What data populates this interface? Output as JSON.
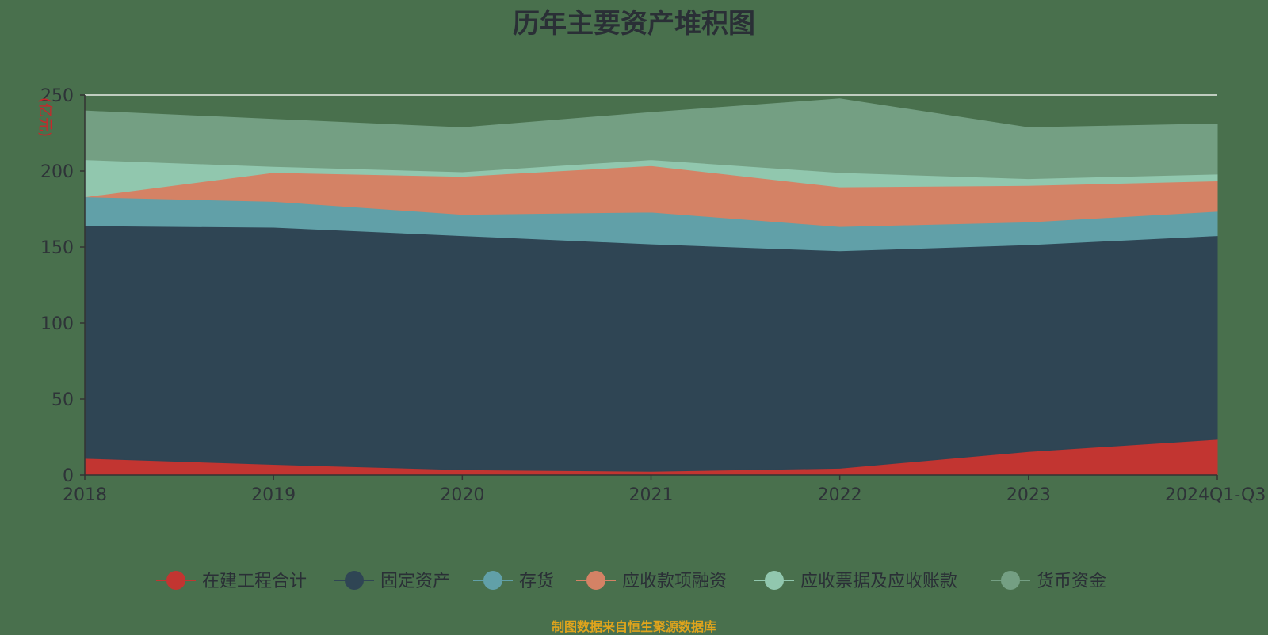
{
  "chart_data": {
    "type": "area",
    "stacked": true,
    "title": "历年主要资产堆积图",
    "ylabel": "(亿元)",
    "xlabel": "",
    "categories": [
      "2018",
      "2019",
      "2020",
      "2021",
      "2022",
      "2023",
      "2024Q1-Q3"
    ],
    "ylim": [
      0,
      250
    ],
    "yticks": [
      0,
      50,
      100,
      150,
      200,
      250
    ],
    "grid": true,
    "legend_position": "bottom",
    "series": [
      {
        "name": "在建工程合计",
        "color": "#c23531",
        "values": [
          11,
          7,
          3.5,
          2.5,
          4.5,
          15.5,
          23.5
        ]
      },
      {
        "name": "固定资产",
        "color": "#2f4554",
        "values": [
          153,
          156,
          154,
          149.5,
          143,
          136,
          134
        ]
      },
      {
        "name": "存货",
        "color": "#61a0a8",
        "values": [
          19,
          17,
          14,
          21,
          16,
          15,
          16
        ]
      },
      {
        "name": "应收款项融资",
        "color": "#d48265",
        "values": [
          0,
          19,
          25,
          30.5,
          26,
          24,
          20
        ]
      },
      {
        "name": "应收票据及应收账款",
        "color": "#91c7ae",
        "values": [
          24.5,
          4,
          3,
          4,
          9.5,
          4.5,
          4.5
        ]
      },
      {
        "name": "货币资金",
        "color": "#749f83",
        "values": [
          32,
          31,
          29,
          31,
          48.5,
          33.5,
          33
        ]
      }
    ]
  },
  "source_note": "制图数据来自恒生聚源数据库"
}
